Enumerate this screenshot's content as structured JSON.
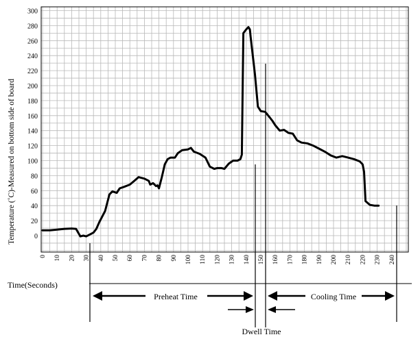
{
  "chart_data": {
    "type": "line",
    "ylabel": "Temperature (˚C)-Measured on bottom side of board",
    "xlabel": "Time(Seconds)",
    "xlim": [
      0,
      240
    ],
    "ylim": [
      0,
      300
    ],
    "grid": true,
    "xticks": [
      0,
      10,
      20,
      30,
      40,
      50,
      60,
      70,
      80,
      90,
      100,
      110,
      120,
      130,
      140,
      150,
      160,
      170,
      180,
      190,
      200,
      210,
      220,
      230,
      240
    ],
    "yticks": [
      {
        "label": "300",
        "value": 300
      },
      {
        "label": "280",
        "value": 280
      },
      {
        "label": "260",
        "value": 260
      },
      {
        "label": "240",
        "value": 240
      },
      {
        "label": "220",
        "value": 220
      },
      {
        "label": "200",
        "value": 200
      },
      {
        "label": "180",
        "value": 180
      },
      {
        "label": "160",
        "value": 160
      },
      {
        "label": "140",
        "value": 140
      },
      {
        "label": "120",
        "value": 120
      },
      {
        "label": "100",
        "value": 100
      },
      {
        "label": "80",
        "value": 80
      },
      {
        "label": "60",
        "value": 60
      },
      {
        "label": "40",
        "value": 40
      },
      {
        "label": "20",
        "value": 20
      },
      {
        "label": "0",
        "value": 0
      }
    ],
    "series": [
      {
        "points": [
          [
            0,
            7
          ],
          [
            5,
            7
          ],
          [
            10,
            8
          ],
          [
            15,
            9
          ],
          [
            20,
            9.5
          ],
          [
            23,
            9
          ],
          [
            26,
            -1
          ],
          [
            28,
            0
          ],
          [
            30,
            -1
          ],
          [
            32,
            1
          ],
          [
            35,
            4
          ],
          [
            37,
            9
          ],
          [
            39,
            18
          ],
          [
            43,
            33
          ],
          [
            46,
            55
          ],
          [
            48,
            59
          ],
          [
            51,
            57
          ],
          [
            53,
            63
          ],
          [
            56,
            65
          ],
          [
            60,
            68
          ],
          [
            63,
            73
          ],
          [
            66,
            78
          ],
          [
            70,
            76
          ],
          [
            73,
            73
          ],
          [
            74,
            68
          ],
          [
            76,
            70
          ],
          [
            78,
            66
          ],
          [
            79,
            67
          ],
          [
            80,
            63
          ],
          [
            82,
            78
          ],
          [
            84,
            95
          ],
          [
            86,
            102
          ],
          [
            88,
            104
          ],
          [
            91,
            104
          ],
          [
            93,
            110
          ],
          [
            96,
            114
          ],
          [
            100,
            115
          ],
          [
            102,
            117
          ],
          [
            104,
            112
          ],
          [
            108,
            109
          ],
          [
            112,
            104
          ],
          [
            115,
            92
          ],
          [
            118,
            89
          ],
          [
            120,
            90
          ],
          [
            123,
            90
          ],
          [
            125,
            89
          ],
          [
            128,
            96
          ],
          [
            131,
            100
          ],
          [
            134,
            100
          ],
          [
            136,
            102
          ],
          [
            137,
            108
          ],
          [
            138,
            270
          ],
          [
            140,
            275
          ],
          [
            141.5,
            278
          ],
          [
            142.5,
            275
          ],
          [
            143,
            265
          ],
          [
            146,
            215
          ],
          [
            148,
            172
          ],
          [
            150,
            166
          ],
          [
            153,
            165
          ],
          [
            156,
            158
          ],
          [
            158,
            153
          ],
          [
            160,
            147
          ],
          [
            163,
            140
          ],
          [
            166,
            141
          ],
          [
            169,
            137
          ],
          [
            172,
            136
          ],
          [
            175,
            127
          ],
          [
            178,
            124
          ],
          [
            182,
            123
          ],
          [
            186,
            120
          ],
          [
            190,
            116
          ],
          [
            194,
            112
          ],
          [
            198,
            107
          ],
          [
            202,
            104
          ],
          [
            206,
            106
          ],
          [
            210,
            104
          ],
          [
            214,
            102
          ],
          [
            218,
            99
          ],
          [
            220,
            95
          ],
          [
            221,
            85
          ],
          [
            222,
            46
          ],
          [
            225,
            41
          ],
          [
            228,
            40
          ],
          [
            231,
            40
          ]
        ]
      }
    ],
    "annotations": {
      "preheat_label": "Preheat Time",
      "cooling_label": "Cooling Time",
      "dwell_label": "Dwell Time"
    }
  }
}
